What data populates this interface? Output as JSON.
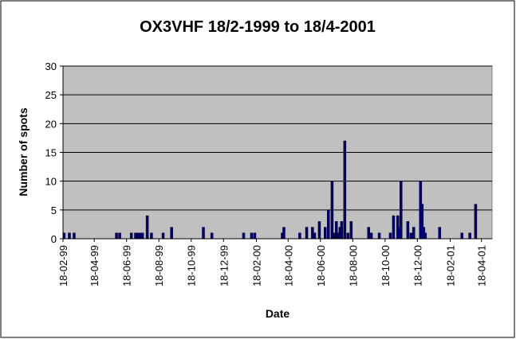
{
  "chart_data": {
    "type": "bar",
    "title": "OX3VHF 18/2-1999 to 18/4-2001",
    "x_label": "Date",
    "y_label": "Number of spots",
    "x": [
      "1999-02-20",
      "1999-03-02",
      "1999-03-11",
      "1999-05-30",
      "1999-06-05",
      "1999-06-27",
      "1999-07-05",
      "1999-07-09",
      "1999-07-14",
      "1999-07-18",
      "1999-07-27",
      "1999-08-04",
      "1999-08-26",
      "1999-09-11",
      "1999-11-10",
      "1999-11-26",
      "2000-01-25",
      "2000-02-09",
      "2000-02-15",
      "2000-04-07",
      "2000-04-10",
      "2000-05-10",
      "2000-05-23",
      "2000-06-03",
      "2000-06-07",
      "2000-06-16",
      "2000-06-27",
      "2000-07-03",
      "2000-07-10",
      "2000-07-15",
      "2000-07-18",
      "2000-07-22",
      "2000-07-25",
      "2000-07-28",
      "2000-08-03",
      "2000-08-09",
      "2000-08-15",
      "2000-09-17",
      "2000-09-22",
      "2000-10-07",
      "2000-10-28",
      "2000-11-03",
      "2000-11-11",
      "2000-11-14",
      "2000-11-17",
      "2000-11-30",
      "2000-12-06",
      "2000-12-11",
      "2000-12-24",
      "2000-12-27",
      "2000-12-30",
      "2001-01-02",
      "2001-01-29",
      "2001-03-12",
      "2001-03-27",
      "2001-04-07"
    ],
    "values": [
      1,
      1,
      1,
      1,
      1,
      1,
      1,
      1,
      1,
      1,
      4,
      1,
      1,
      2,
      2,
      1,
      1,
      1,
      1,
      1,
      2,
      1,
      2,
      2,
      1,
      3,
      2,
      5,
      10,
      1,
      3,
      1,
      2,
      3,
      17,
      1,
      3,
      2,
      1,
      1,
      1,
      4,
      4,
      2,
      10,
      3,
      1,
      2,
      10,
      6,
      2,
      1,
      2,
      1,
      1,
      6
    ],
    "color": "#000080",
    "xlim": [
      "1999-02-18",
      "2001-05-08"
    ],
    "xticks": [
      {
        "value": "1999-02-18",
        "label": "18-02-99"
      },
      {
        "value": "1999-04-18",
        "label": "18-04-99"
      },
      {
        "value": "1999-06-18",
        "label": "18-06-99"
      },
      {
        "value": "1999-08-18",
        "label": "18-08-99"
      },
      {
        "value": "1999-10-18",
        "label": "18-10-99"
      },
      {
        "value": "1999-12-18",
        "label": "18-12-99"
      },
      {
        "value": "2000-02-18",
        "label": "18-02-00"
      },
      {
        "value": "2000-04-18",
        "label": "18-04-00"
      },
      {
        "value": "2000-06-18",
        "label": "18-06-00"
      },
      {
        "value": "2000-08-18",
        "label": "18-08-00"
      },
      {
        "value": "2000-10-18",
        "label": "18-10-00"
      },
      {
        "value": "2000-12-18",
        "label": "18-12-00"
      },
      {
        "value": "2001-02-18",
        "label": "18-02-01"
      },
      {
        "value": "2001-04-18",
        "label": "18-04-01"
      }
    ],
    "ylim": [
      0,
      30
    ],
    "yticks": [
      0,
      5,
      10,
      15,
      20,
      25,
      30
    ],
    "grid": true
  }
}
